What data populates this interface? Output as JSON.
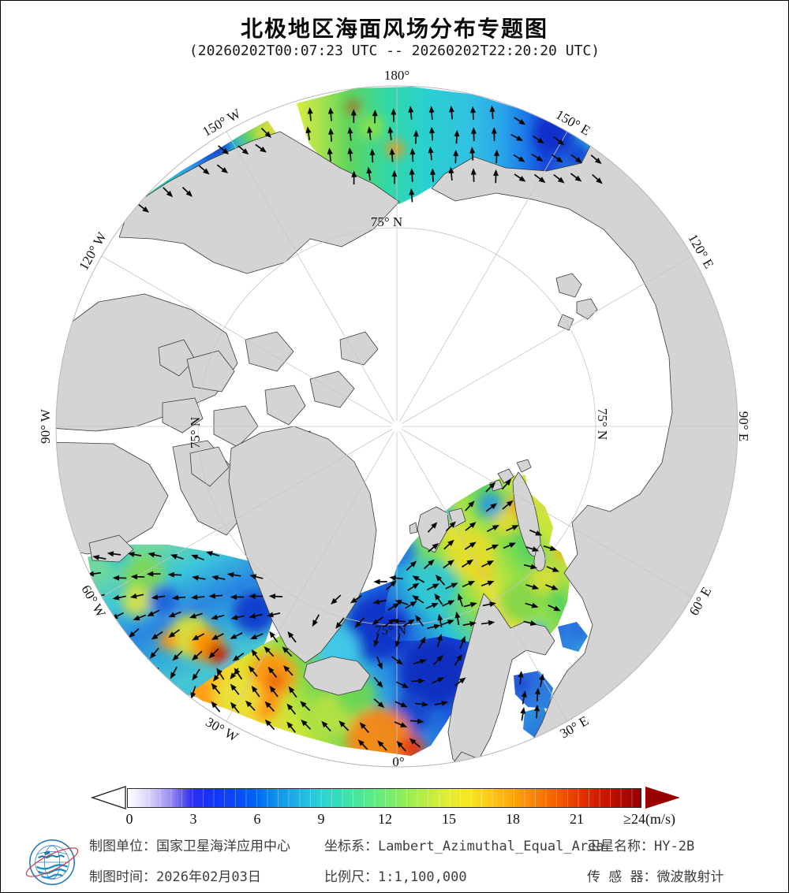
{
  "title": "北极地区海面风场分布专题图",
  "subtitle": "(20260202T00:07:23 UTC -- 20260202T22:20:20 UTC)",
  "map": {
    "graticule_labels": [
      {
        "text": "180°"
      },
      {
        "text": "150° W"
      },
      {
        "text": "120° W"
      },
      {
        "text": "90° W"
      },
      {
        "text": "60° W"
      },
      {
        "text": "30° W"
      },
      {
        "text": "0°"
      },
      {
        "text": "30° E"
      },
      {
        "text": "60° E"
      },
      {
        "text": "90° E"
      },
      {
        "text": "120° E"
      },
      {
        "text": "150° E"
      },
      {
        "text": "75° N"
      },
      {
        "text": "75° N"
      },
      {
        "text": "75° N"
      },
      {
        "text": "75° N"
      }
    ],
    "land_color": "#d4d4d4",
    "ocean_color": "#ffffff",
    "graticule_color": "#c6c6c6",
    "coastline_color": "#3c3c3c",
    "wind_arrow_color": "#0a0a0a"
  },
  "colorbar": {
    "min": 0,
    "max": 24,
    "unit": "m/s",
    "tick_labels": [
      "0",
      "3",
      "6",
      "9",
      "12",
      "15",
      "18",
      "21"
    ],
    "max_label": "≥24(m/s)",
    "under_arrow_color": "#ffffff",
    "over_arrow_color": "#990000",
    "stops": [
      {
        "v": 0,
        "c": "#ffffff"
      },
      {
        "v": 1,
        "c": "#d8d4fa"
      },
      {
        "v": 2,
        "c": "#9c8cf2"
      },
      {
        "v": 3,
        "c": "#2e2ef2"
      },
      {
        "v": 4,
        "c": "#1334f8"
      },
      {
        "v": 5,
        "c": "#0948f8"
      },
      {
        "v": 6,
        "c": "#0064f4"
      },
      {
        "v": 7,
        "c": "#0f96ec"
      },
      {
        "v": 8,
        "c": "#1fb4e4"
      },
      {
        "v": 9,
        "c": "#2ad2d6"
      },
      {
        "v": 10,
        "c": "#38e0b4"
      },
      {
        "v": 11,
        "c": "#50e894"
      },
      {
        "v": 12,
        "c": "#6cec74"
      },
      {
        "v": 13,
        "c": "#92ee58"
      },
      {
        "v": 14,
        "c": "#bcee40"
      },
      {
        "v": 15,
        "c": "#e2ee30"
      },
      {
        "v": 16,
        "c": "#f8e620"
      },
      {
        "v": 17,
        "c": "#fec816"
      },
      {
        "v": 18,
        "c": "#fda60e"
      },
      {
        "v": 19,
        "c": "#fb8406"
      },
      {
        "v": 20,
        "c": "#f66000"
      },
      {
        "v": 21,
        "c": "#e83a00"
      },
      {
        "v": 22,
        "c": "#d21c00"
      },
      {
        "v": 23,
        "c": "#b40a00"
      },
      {
        "v": 24,
        "c": "#940000"
      }
    ]
  },
  "footer": {
    "items": [
      {
        "label": "制图单位：",
        "value": "国家卫星海洋应用中心"
      },
      {
        "label": "制图时间：",
        "value": "2026年02月03日"
      },
      {
        "label": "坐标系：",
        "value": "Lambert_Azimuthal_Equal_Area"
      },
      {
        "label": "比例尺：",
        "value": "1:1,100,000"
      },
      {
        "label": "卫星名称：",
        "value": "HY-2B"
      },
      {
        "label": "传 感 器：",
        "value": "微波散射计"
      }
    ]
  }
}
